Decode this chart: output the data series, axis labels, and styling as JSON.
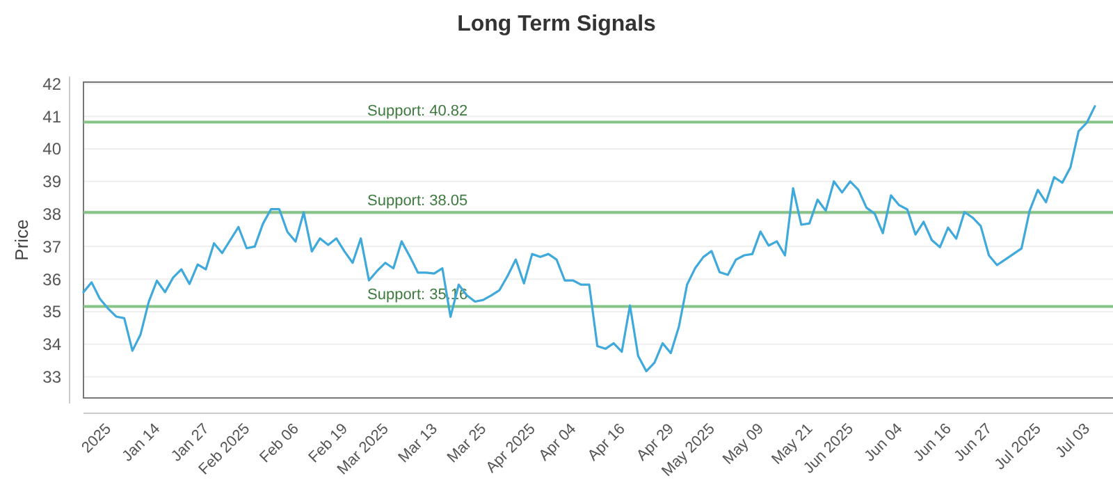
{
  "chart_data": {
    "type": "line",
    "title": "Long Term Signals",
    "ylabel": "Price",
    "categories": [
      null,
      null,
      null,
      "2025",
      null,
      null,
      null,
      null,
      null,
      "Jan 14",
      null,
      null,
      null,
      null,
      null,
      "Jan 27",
      null,
      null,
      null,
      null,
      "Feb 2025",
      null,
      null,
      null,
      null,
      null,
      "Feb 06",
      null,
      null,
      null,
      null,
      null,
      "Feb 19",
      null,
      null,
      null,
      null,
      "Mar 2025",
      null,
      null,
      null,
      null,
      null,
      "Mar 13",
      null,
      null,
      null,
      null,
      null,
      "Mar 25",
      null,
      null,
      null,
      null,
      null,
      "Apr 2025",
      null,
      null,
      null,
      null,
      "Apr 04",
      null,
      null,
      null,
      null,
      null,
      "Apr 16",
      null,
      null,
      null,
      null,
      null,
      "Apr 29",
      null,
      null,
      null,
      null,
      "May 2025",
      null,
      null,
      null,
      null,
      null,
      "May 09",
      null,
      null,
      null,
      null,
      null,
      "May 21",
      null,
      null,
      null,
      null,
      "Jun 2025",
      null,
      null,
      null,
      null,
      null,
      "Jun 04",
      null,
      null,
      null,
      null,
      null,
      "Jun 16",
      null,
      null,
      null,
      null,
      "Jun 27",
      null,
      null,
      null,
      null,
      null,
      "Jul 2025",
      null,
      null,
      null,
      null,
      null,
      "Jul 03",
      null
    ],
    "series": [
      {
        "color": "#3fa9dc",
        "values": [
          35.6,
          35.9,
          35.4,
          35.1,
          34.85,
          34.8,
          33.8,
          34.3,
          35.3,
          35.95,
          35.6,
          36.05,
          36.3,
          35.85,
          36.45,
          36.3,
          37.1,
          36.8,
          37.2,
          37.6,
          36.95,
          37.0,
          37.7,
          38.15,
          38.15,
          37.45,
          37.15,
          38.05,
          36.85,
          37.25,
          37.05,
          37.25,
          36.85,
          36.5,
          37.25,
          35.96,
          36.25,
          36.5,
          36.33,
          37.16,
          36.7,
          36.2,
          36.2,
          36.17,
          36.33,
          34.84,
          35.83,
          35.5,
          35.31,
          35.36,
          35.5,
          35.66,
          36.1,
          36.6,
          35.87,
          36.77,
          36.68,
          36.77,
          36.6,
          35.96,
          35.96,
          35.83,
          35.83,
          33.94,
          33.86,
          34.03,
          33.77,
          35.19,
          33.64,
          33.17,
          33.43,
          34.03,
          33.73,
          34.54,
          35.83,
          36.34,
          36.68,
          36.86,
          36.21,
          36.13,
          36.6,
          36.73,
          36.77,
          37.46,
          37.03,
          37.16,
          36.73,
          38.79,
          37.67,
          37.71,
          38.44,
          38.1,
          39.0,
          38.66,
          39.0,
          38.74,
          38.19,
          38.01,
          37.41,
          38.57,
          38.27,
          38.14,
          37.37,
          37.76,
          37.2,
          36.98,
          37.58,
          37.24,
          38.06,
          37.89,
          37.63,
          36.73,
          36.43,
          36.6,
          36.77,
          36.94,
          38.1,
          38.74,
          38.36,
          39.13,
          38.96,
          39.43,
          40.54,
          40.8,
          41.31
        ]
      }
    ],
    "ylim": [
      32.35,
      42.05
    ],
    "yticks": [
      33,
      34,
      35,
      36,
      37,
      38,
      39,
      40,
      41,
      42
    ],
    "grid": "y",
    "marker": "none",
    "line_style": "solid",
    "ref_lines": [
      {
        "axis": "y",
        "value": 40.82,
        "label": "Support: 40.82",
        "color": "#86c386"
      },
      {
        "axis": "y",
        "value": 38.05,
        "label": "Support: 38.05",
        "color": "#86c386"
      },
      {
        "axis": "y",
        "value": 35.16,
        "label": "Support: 35.16",
        "color": "#86c386"
      }
    ]
  }
}
